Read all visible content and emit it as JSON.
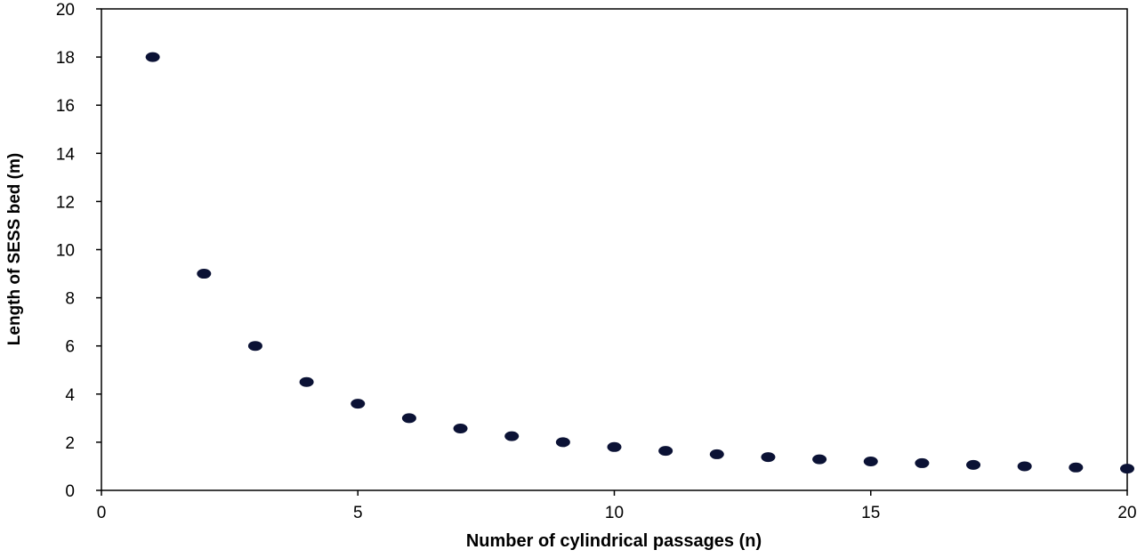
{
  "chart_data": {
    "type": "scatter",
    "title": "",
    "xlabel": "Number of cylindrical passages (n)",
    "ylabel": "Length of SESS bed (m)",
    "xlim": [
      0,
      20
    ],
    "ylim": [
      0,
      20
    ],
    "xticks": [
      0,
      5,
      10,
      15,
      20
    ],
    "yticks": [
      0,
      2,
      4,
      6,
      8,
      10,
      12,
      14,
      16,
      18,
      20
    ],
    "grid": false,
    "legend": "none",
    "marker_color": "#0b1235",
    "series": [
      {
        "x": [
          1,
          2,
          3,
          4,
          5,
          6,
          7,
          8,
          9,
          10,
          11,
          12,
          13,
          14,
          15,
          16,
          17,
          18,
          19,
          20
        ],
        "y": [
          18,
          9,
          6,
          4.5,
          3.6,
          3,
          2.57,
          2.25,
          2,
          1.8,
          1.64,
          1.5,
          1.38,
          1.29,
          1.2,
          1.13,
          1.06,
          1,
          0.95,
          0.9
        ]
      }
    ]
  }
}
